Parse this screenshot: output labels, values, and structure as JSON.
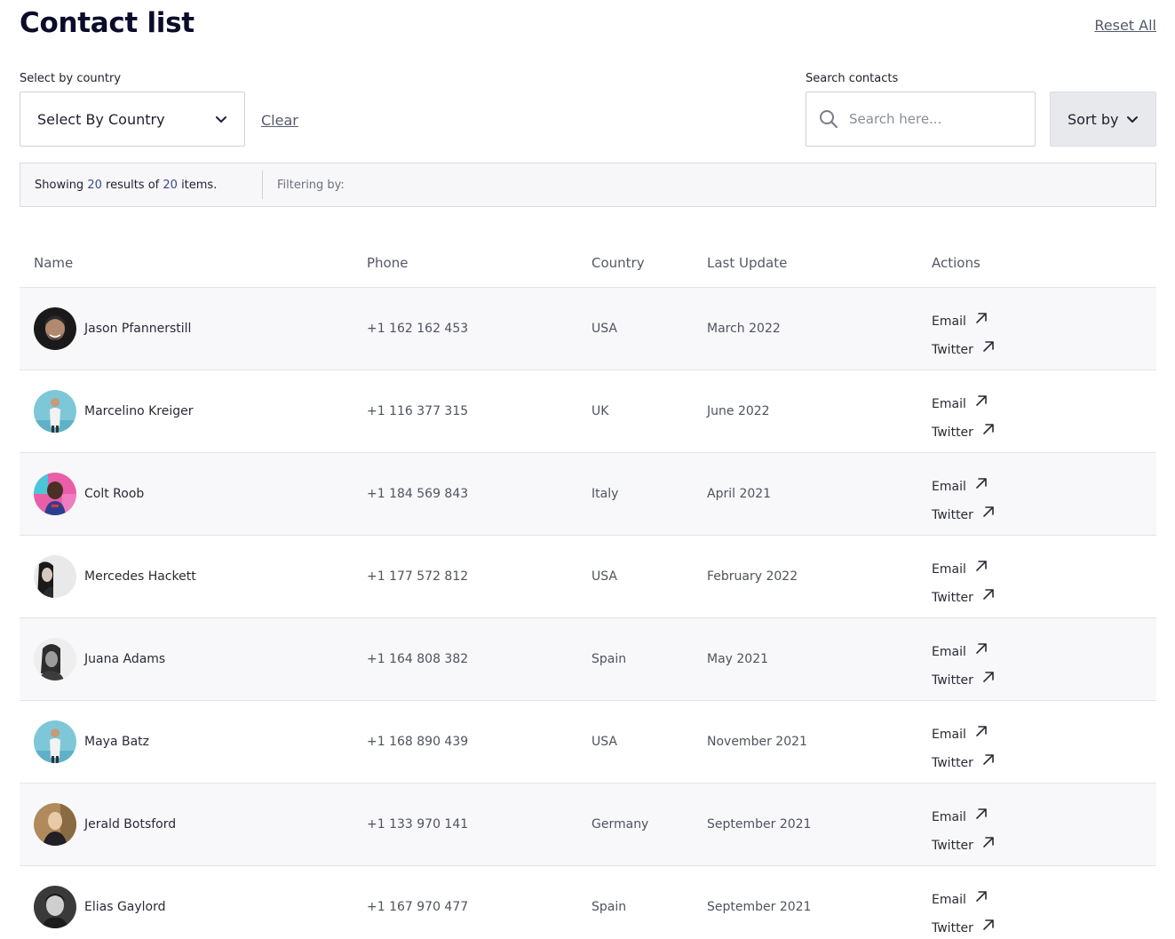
{
  "header": {
    "title": "Contact list",
    "reset_label": "Reset All"
  },
  "filters": {
    "country_label": "Select by country",
    "country_select_value": "Select By Country",
    "clear_label": "Clear",
    "search_label": "Search contacts",
    "search_placeholder": "Search here...",
    "sort_label": "Sort by"
  },
  "status": {
    "showing_prefix": "Showing",
    "shown_count": "20",
    "results_of": "results of",
    "total_count": "20",
    "items_suffix": "items.",
    "filtering_label": "Filtering by:"
  },
  "table": {
    "columns": {
      "name": "Name",
      "phone": "Phone",
      "country": "Country",
      "last_update": "Last Update",
      "actions": "Actions"
    },
    "action_labels": {
      "email": "Email",
      "twitter": "Twitter"
    },
    "rows": [
      {
        "name": "Jason Pfannerstill",
        "phone": "+1 162 162 453",
        "country": "USA",
        "last_update": "March 2022",
        "avatar": "avatar-man-beard-dark-background"
      },
      {
        "name": "Marcelino Kreiger",
        "phone": "+1 116 377 315",
        "country": "UK",
        "last_update": "June 2022",
        "avatar": "avatar-man-blue-sky"
      },
      {
        "name": "Colt Roob",
        "phone": "+1 184 569 843",
        "country": "Italy",
        "last_update": "April 2021",
        "avatar": "avatar-man-colorful-wall"
      },
      {
        "name": "Mercedes Hackett",
        "phone": "+1 177 572 812",
        "country": "USA",
        "last_update": "February 2022",
        "avatar": "avatar-woman-light-background"
      },
      {
        "name": "Juana Adams",
        "phone": "+1 164 808 382",
        "country": "Spain",
        "last_update": "May 2021",
        "avatar": "avatar-woman-monochrome"
      },
      {
        "name": "Maya Batz",
        "phone": "+1 168 890 439",
        "country": "USA",
        "last_update": "November 2021",
        "avatar": "avatar-man-blue-sky"
      },
      {
        "name": "Jerald Botsford",
        "phone": "+1 133 970 141",
        "country": "Germany",
        "last_update": "September 2021",
        "avatar": "avatar-man-blond-warm"
      },
      {
        "name": "Elias Gaylord",
        "phone": "+1 167 970 477",
        "country": "Spain",
        "last_update": "September 2021",
        "avatar": "avatar-man-monochrome"
      }
    ]
  },
  "colors": {
    "title": "#0b0b2a",
    "count_accent": "#3a4a8a",
    "row_alt_background": "#f8f8fa",
    "sort_background": "#e8e9ec"
  }
}
